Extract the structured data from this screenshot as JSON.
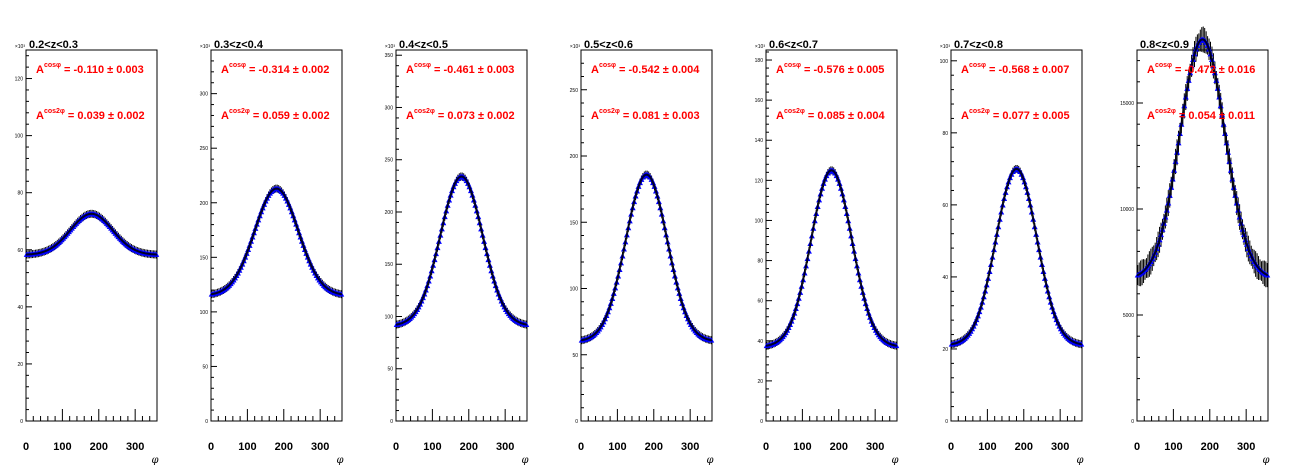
{
  "chart_data": [
    {
      "type": "scatter",
      "title": "0.2<z<0.3",
      "multiplier": "×10³",
      "xlabel": "φ",
      "xlim": [
        0,
        360
      ],
      "xticks": [
        0,
        100,
        200,
        300
      ],
      "ylim": [
        0,
        130
      ],
      "yticks": [
        0,
        20,
        40,
        60,
        80,
        100,
        120
      ],
      "model": {
        "base": 58.2,
        "amp": 14.4,
        "width": 58
      },
      "annotations": {
        "cos_label": "cosφ",
        "cos_value": "= -0.110 ± 0.003",
        "cos2_label": "cos2φ",
        "cos2_value": "= 0.039 ± 0.002",
        "prefix": "A"
      },
      "series": [
        {
          "marker": "triangle",
          "color": "#0000ff"
        }
      ]
    },
    {
      "type": "scatter",
      "title": "0.3<z<0.4",
      "multiplier": "×10³",
      "xlabel": "φ",
      "xlim": [
        0,
        360
      ],
      "xticks": [
        0,
        100,
        200,
        300
      ],
      "ylim": [
        0,
        340
      ],
      "yticks": [
        0,
        50,
        100,
        150,
        200,
        250,
        300
      ],
      "model": {
        "base": 115,
        "amp": 98,
        "width": 60
      },
      "annotations": {
        "cos_label": "cosφ",
        "cos_value": "= -0.314 ± 0.002",
        "cos2_label": "cos2φ",
        "cos2_value": "= 0.059 ± 0.002",
        "prefix": "A"
      },
      "series": [
        {
          "marker": "triangle",
          "color": "#0000ff"
        }
      ]
    },
    {
      "type": "scatter",
      "title": "0.4<z<0.5",
      "multiplier": "×10³",
      "xlabel": "φ",
      "xlim": [
        0,
        360
      ],
      "xticks": [
        0,
        100,
        200,
        300
      ],
      "ylim": [
        0,
        355
      ],
      "yticks": [
        0,
        50,
        100,
        150,
        200,
        250,
        300,
        350
      ],
      "model": {
        "base": 91,
        "amp": 143,
        "width": 58
      },
      "annotations": {
        "cos_label": "cosφ",
        "cos_value": "= -0.461 ± 0.003",
        "cos2_label": "cos2φ",
        "cos2_value": "= 0.073 ± 0.002",
        "prefix": "A"
      },
      "series": [
        {
          "marker": "triangle",
          "color": "#0000ff"
        }
      ]
    },
    {
      "type": "scatter",
      "title": "0.5<z<0.6",
      "multiplier": "×10³",
      "xlabel": "φ",
      "xlim": [
        0,
        360
      ],
      "xticks": [
        0,
        100,
        200,
        300
      ],
      "ylim": [
        0,
        280
      ],
      "yticks": [
        0,
        50,
        100,
        150,
        200,
        250
      ],
      "model": {
        "base": 60,
        "amp": 126,
        "width": 57
      },
      "annotations": {
        "cos_label": "cosφ",
        "cos_value": "= -0.542 ± 0.004",
        "cos2_label": "cos2φ",
        "cos2_value": "= 0.081 ± 0.003",
        "prefix": "A"
      },
      "series": [
        {
          "marker": "triangle",
          "color": "#0000ff"
        }
      ]
    },
    {
      "type": "scatter",
      "title": "0.6<z<0.7",
      "multiplier": "×10³",
      "xlabel": "φ",
      "xlim": [
        0,
        360
      ],
      "xticks": [
        0,
        100,
        200,
        300
      ],
      "ylim": [
        0,
        185
      ],
      "yticks": [
        0,
        20,
        40,
        60,
        80,
        100,
        120,
        140,
        160,
        180
      ],
      "model": {
        "base": 37,
        "amp": 88,
        "width": 56
      },
      "annotations": {
        "cos_label": "cosφ",
        "cos_value": "= -0.576 ± 0.005",
        "cos2_label": "cos2φ",
        "cos2_value": "= 0.085 ± 0.004",
        "prefix": "A"
      },
      "series": [
        {
          "marker": "triangle",
          "color": "#0000ff"
        }
      ]
    },
    {
      "type": "scatter",
      "title": "0.7<z<0.8",
      "multiplier": "×10³",
      "xlabel": "φ",
      "xlim": [
        0,
        360
      ],
      "xticks": [
        0,
        100,
        200,
        300
      ],
      "ylim": [
        0,
        103
      ],
      "yticks": [
        0,
        20,
        40,
        60,
        80,
        100
      ],
      "model": {
        "base": 21,
        "amp": 49,
        "width": 56
      },
      "annotations": {
        "cos_label": "cosφ",
        "cos_value": "= -0.568 ± 0.007",
        "cos2_label": "cos2φ",
        "cos2_value": "= 0.077 ± 0.005",
        "prefix": "A"
      },
      "series": [
        {
          "marker": "triangle",
          "color": "#0000ff"
        }
      ]
    },
    {
      "type": "scatter",
      "title": "0.8<z<0.9",
      "multiplier": "",
      "xlabel": "φ",
      "xlim": [
        0,
        360
      ],
      "xticks": [
        0,
        100,
        200,
        300
      ],
      "ylim": [
        0,
        17500
      ],
      "yticks": [
        0,
        5000,
        10000,
        15000
      ],
      "model": {
        "base": 6700,
        "amp": 11300,
        "width": 62
      },
      "annotations": {
        "cos_label": "cosφ",
        "cos_value": "= -0.472 ± 0.016",
        "cos2_label": "cos2φ",
        "cos2_value": "= 0.054 ± 0.011",
        "prefix": "A"
      },
      "series": [
        {
          "marker": "triangle",
          "color": "#0000ff"
        }
      ]
    }
  ]
}
